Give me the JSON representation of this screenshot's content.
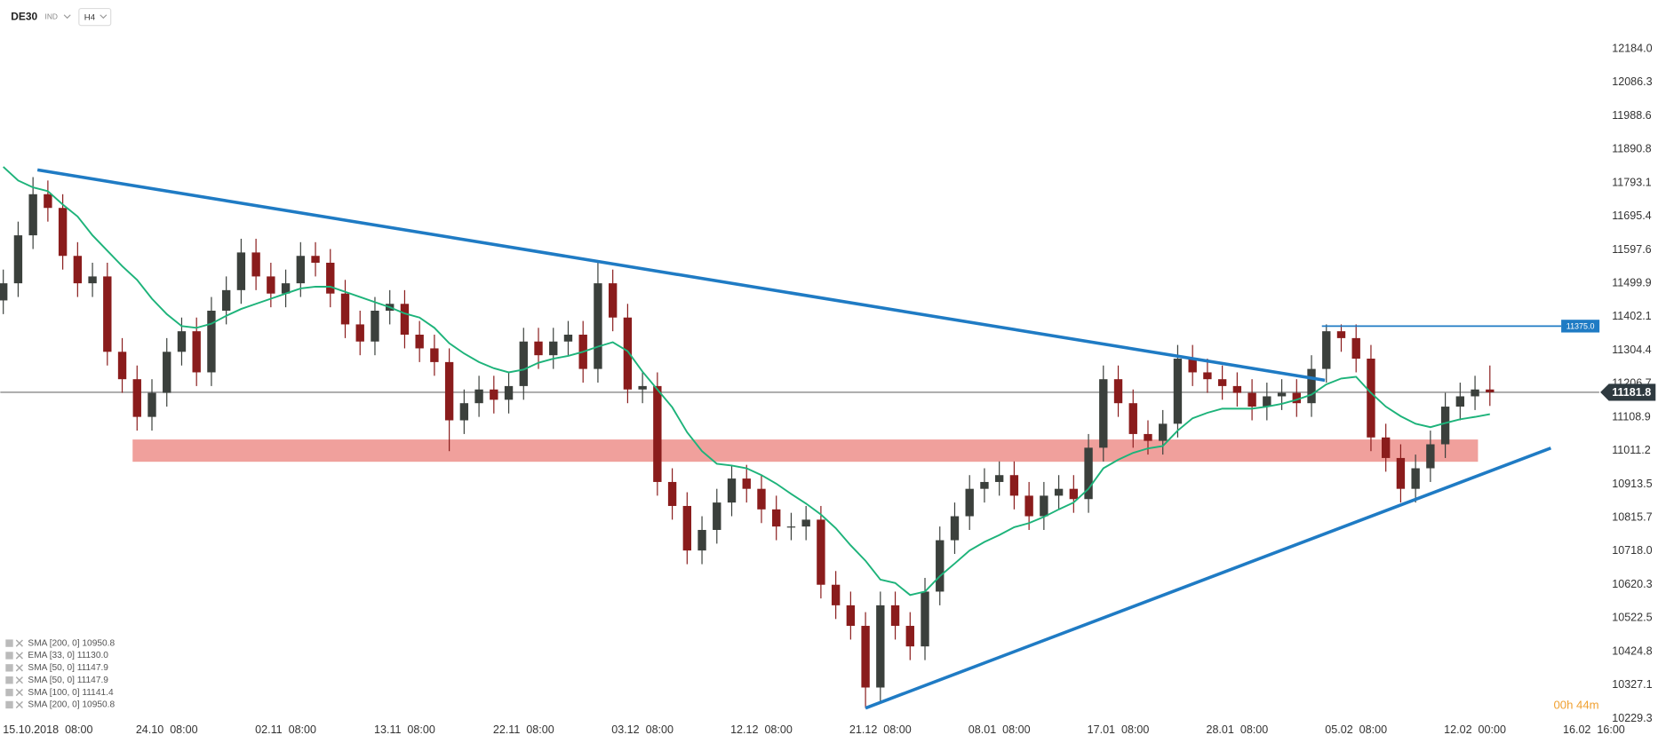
{
  "header": {
    "symbol": "DE30",
    "market": "IND",
    "timeframe": "H4"
  },
  "chart_data": {
    "type": "candlestick",
    "x": [
      0,
      1,
      2,
      3,
      4,
      5,
      6,
      7,
      8,
      9,
      10,
      11,
      12,
      13,
      14,
      15,
      16,
      17,
      18,
      19,
      20,
      21,
      22,
      23,
      24,
      25,
      26,
      27,
      28,
      29,
      30,
      31,
      32,
      33,
      34,
      35,
      36,
      37,
      38,
      39,
      40,
      41,
      42,
      43,
      44,
      45,
      46,
      47,
      48,
      49,
      50,
      51,
      52,
      53,
      54,
      55,
      56,
      57,
      58,
      59,
      60,
      61,
      62,
      63,
      64,
      65,
      66,
      67,
      68,
      69,
      70,
      71,
      72,
      73,
      74,
      75,
      76,
      77,
      78,
      79,
      80,
      81,
      82,
      83,
      84,
      85,
      86,
      87,
      88,
      89,
      90,
      91,
      92,
      93,
      94,
      95,
      96,
      97,
      98,
      99,
      100
    ],
    "open": [
      11450,
      11500,
      11640,
      11760,
      11720,
      11580,
      11500,
      11520,
      11300,
      11220,
      11110,
      11180,
      11300,
      11360,
      11240,
      11420,
      11480,
      11590,
      11520,
      11470,
      11500,
      11580,
      11560,
      11470,
      11380,
      11330,
      11420,
      11440,
      11350,
      11310,
      11270,
      11100,
      11150,
      11190,
      11160,
      11200,
      11330,
      11290,
      11330,
      11350,
      11250,
      11500,
      11400,
      11190,
      11200,
      10920,
      10850,
      10720,
      10780,
      10860,
      10930,
      10900,
      10840,
      10790,
      10790,
      10810,
      10620,
      10560,
      10500,
      10320,
      10560,
      10500,
      10440,
      10600,
      10750,
      10820,
      10900,
      10920,
      10940,
      10880,
      10820,
      10880,
      10900,
      10870,
      11020,
      11220,
      11150,
      11060,
      11040,
      11090,
      11280,
      11240,
      11220,
      11200,
      11180,
      11140,
      11170,
      11180,
      11150,
      11250,
      11360,
      11340,
      11280,
      11050,
      10990,
      10900,
      10960,
      11030,
      11140,
      11170,
      11190
    ],
    "high": [
      11540,
      11680,
      11810,
      11800,
      11760,
      11620,
      11560,
      11560,
      11340,
      11260,
      11220,
      11340,
      11400,
      11400,
      11460,
      11520,
      11630,
      11630,
      11560,
      11540,
      11620,
      11620,
      11600,
      11510,
      11420,
      11460,
      11480,
      11480,
      11390,
      11350,
      11310,
      11190,
      11230,
      11230,
      11240,
      11370,
      11370,
      11370,
      11390,
      11390,
      11560,
      11540,
      11440,
      11240,
      11240,
      10960,
      10890,
      10820,
      10900,
      10970,
      10970,
      10940,
      10880,
      10830,
      10850,
      10850,
      10660,
      10600,
      10540,
      10600,
      10600,
      10540,
      10640,
      10790,
      10860,
      10940,
      10960,
      10980,
      10980,
      10920,
      10920,
      10940,
      10940,
      11060,
      11260,
      11260,
      11190,
      11100,
      11130,
      11320,
      11320,
      11280,
      11260,
      11240,
      11220,
      11210,
      11220,
      11220,
      11290,
      11380,
      11380,
      11380,
      11320,
      11090,
      11030,
      11000,
      11070,
      11180,
      11210,
      11230,
      11260
    ],
    "low": [
      11410,
      11460,
      11600,
      11680,
      11540,
      11460,
      11460,
      11260,
      11180,
      11070,
      11070,
      11140,
      11260,
      11200,
      11200,
      11380,
      11440,
      11480,
      11430,
      11430,
      11460,
      11520,
      11430,
      11340,
      11290,
      11290,
      11380,
      11310,
      11270,
      11230,
      11010,
      11060,
      11110,
      11120,
      11120,
      11160,
      11250,
      11250,
      11290,
      11210,
      11210,
      11360,
      11150,
      11150,
      10880,
      10810,
      10680,
      10680,
      10740,
      10820,
      10860,
      10800,
      10750,
      10750,
      10750,
      10580,
      10520,
      10460,
      10260,
      10280,
      10460,
      10400,
      10400,
      10560,
      10710,
      10780,
      10860,
      10880,
      10840,
      10780,
      10780,
      10840,
      10830,
      10830,
      10980,
      11110,
      11020,
      11000,
      11000,
      11050,
      11200,
      11180,
      11160,
      11140,
      11100,
      11100,
      11130,
      11110,
      11110,
      11210,
      11300,
      11240,
      11010,
      10950,
      10860,
      10860,
      10920,
      10990,
      11100,
      11130,
      11142
    ],
    "close": [
      11500,
      11640,
      11760,
      11720,
      11580,
      11500,
      11520,
      11300,
      11220,
      11110,
      11180,
      11300,
      11360,
      11240,
      11420,
      11480,
      11590,
      11520,
      11470,
      11500,
      11580,
      11560,
      11470,
      11380,
      11330,
      11420,
      11440,
      11350,
      11310,
      11270,
      11100,
      11150,
      11190,
      11160,
      11200,
      11330,
      11290,
      11330,
      11350,
      11250,
      11500,
      11400,
      11190,
      11200,
      10920,
      10850,
      10720,
      10780,
      10860,
      10930,
      10900,
      10840,
      10790,
      10790,
      10810,
      10620,
      10560,
      10500,
      10320,
      10560,
      10500,
      10440,
      10600,
      10750,
      10820,
      10900,
      10920,
      10940,
      10880,
      10820,
      10880,
      10900,
      10870,
      11020,
      11220,
      11150,
      11060,
      11040,
      11090,
      11280,
      11240,
      11220,
      11200,
      11180,
      11140,
      11170,
      11180,
      11150,
      11250,
      11360,
      11340,
      11280,
      11050,
      10990,
      10900,
      10960,
      11030,
      11140,
      11170,
      11190,
      11182
    ],
    "up_color": "#3b403c",
    "down_color": "#8a1c1c",
    "ma": {
      "color": "#1db37a",
      "values": [
        11840,
        11800,
        11780,
        11769,
        11730,
        11695,
        11640,
        11595,
        11550,
        11510,
        11455,
        11410,
        11375,
        11370,
        11382,
        11405,
        11425,
        11440,
        11455,
        11470,
        11485,
        11490,
        11490,
        11475,
        11460,
        11445,
        11430,
        11412,
        11400,
        11370,
        11325,
        11295,
        11270,
        11252,
        11240,
        11248,
        11268,
        11280,
        11288,
        11300,
        11315,
        11328,
        11302,
        11242,
        11190,
        11138,
        11065,
        11010,
        10973,
        10968,
        10960,
        10940,
        10915,
        10885,
        10857,
        10825,
        10785,
        10735,
        10690,
        10635,
        10625,
        10590,
        10600,
        10645,
        10682,
        10720,
        10745,
        10765,
        10788,
        10800,
        10818,
        10840,
        10860,
        10900,
        10960,
        10985,
        11005,
        11018,
        11025,
        11070,
        11106,
        11122,
        11134,
        11134,
        11134,
        11140,
        11148,
        11160,
        11175,
        11205,
        11222,
        11227,
        11180,
        11140,
        11112,
        11090,
        11080,
        11092,
        11103,
        11110,
        11118
      ]
    },
    "trendlines": [
      {
        "color": "#1f7bc4",
        "x": [
          2.3,
          88.9
        ],
        "y": [
          11831,
          11217
        ]
      },
      {
        "color": "#1f7bc4",
        "x": [
          58,
          104.1
        ],
        "y": [
          10260,
          11019
        ]
      }
    ],
    "level": {
      "color": "#1f7bc4",
      "x": [
        88.7,
        104.8
      ],
      "value": {
        "value": 11375,
        "label": "11375.0"
      }
    },
    "zone": {
      "color": "#f0a09c",
      "x": [
        8.7,
        99.2
      ],
      "y": [
        10979,
        11044
      ]
    },
    "last_price": 11181.8,
    "xlim": [
      -0.2,
      107
    ],
    "ylim": [
      10220,
      12234
    ],
    "xticks": [
      {
        "value": 3,
        "label": "15.10.2018  08:00"
      },
      {
        "value": 11,
        "label": "24.10  08:00"
      },
      {
        "value": 19,
        "label": "02.11  08:00"
      },
      {
        "value": 27,
        "label": "13.11  08:00"
      },
      {
        "value": 35,
        "label": "22.11  08:00"
      },
      {
        "value": 43,
        "label": "03.12  08:00"
      },
      {
        "value": 51,
        "label": "12.12  08:00"
      },
      {
        "value": 59,
        "label": "21.12  08:00"
      },
      {
        "value": 67,
        "label": "08.01  08:00"
      },
      {
        "value": 75,
        "label": "17.01  08:00"
      },
      {
        "value": 83,
        "label": "28.01  08:00"
      },
      {
        "value": 91,
        "label": "05.02  08:00"
      },
      {
        "value": 99,
        "label": "12.02  00:00"
      },
      {
        "value": 107,
        "label": "16.02  16:00"
      }
    ],
    "yticks": [
      {
        "value": 12184,
        "label": "12184.0"
      },
      12086.3,
      11988.6,
      11890.8,
      11793.1,
      11695.4,
      11597.6,
      11499.9,
      11402.1,
      11304.4,
      11206.7,
      11108.9,
      11011.2,
      10913.5,
      10815.7,
      {
        "value": 10718,
        "label": "10718.0"
      },
      10620.3,
      10522.5,
      10424.8,
      10327.1,
      10229.3
    ],
    "indicators": [
      "SMA [200, 0] 10950.8",
      "EMA [33, 0] 11130.0",
      "SMA [50, 0] 11147.9",
      "SMA [50, 0] 11147.9",
      "SMA [100, 0] 11141.4",
      "SMA [200, 0] 10950.8"
    ],
    "timer": "00h 44m"
  }
}
